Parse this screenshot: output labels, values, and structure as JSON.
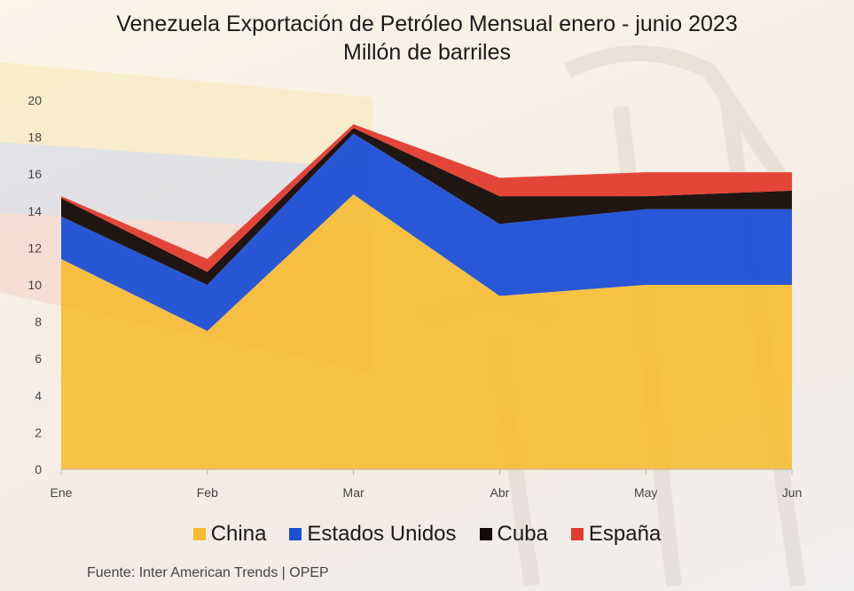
{
  "chart_data": {
    "type": "area",
    "stacked": true,
    "title": "Venezuela Exportación de Petróleo Mensual enero - junio 2023",
    "subtitle": "Millón de barriles",
    "categories": [
      "Ene",
      "Feb",
      "Mar",
      "Abr",
      "May",
      "Jun"
    ],
    "ylim": [
      0,
      20
    ],
    "yticks": [
      0,
      2,
      4,
      6,
      8,
      10,
      12,
      14,
      16,
      18,
      20
    ],
    "grid": false,
    "legend_position": "bottom",
    "series": [
      {
        "name": "China",
        "color": "#f7bb2e",
        "values": [
          11.4,
          7.5,
          14.9,
          9.4,
          10.0,
          10.0
        ]
      },
      {
        "name": "Estados Unidos",
        "color": "#1c4fd6",
        "values": [
          2.3,
          2.5,
          3.3,
          3.9,
          4.1,
          4.1
        ]
      },
      {
        "name": "Cuba",
        "color": "#140a06",
        "values": [
          1.0,
          0.7,
          0.3,
          1.5,
          0.7,
          1.0
        ]
      },
      {
        "name": "España",
        "color": "#e23b2f",
        "values": [
          0.1,
          0.7,
          0.2,
          1.0,
          1.3,
          1.0
        ]
      }
    ],
    "source": "Fuente: Inter American Trends | OPEP"
  }
}
